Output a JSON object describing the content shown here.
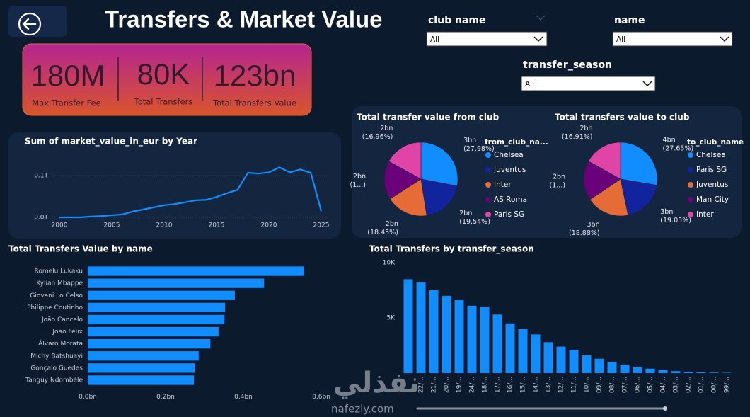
{
  "header": {
    "title": "Transfers & Market Value"
  },
  "kpis": [
    {
      "value": "180M",
      "label": "Max Transfer Fee"
    },
    {
      "value": "80K",
      "label": "Total Transfers"
    },
    {
      "value": "123bn",
      "label": "Total Transfers Value"
    }
  ],
  "slicers": [
    {
      "label": "club name",
      "selection": "All"
    },
    {
      "label": "name",
      "selection": "All"
    },
    {
      "label": "transfer_season",
      "selection": "All"
    }
  ],
  "watermark": {
    "arabic": "نفذلي",
    "site": "nafezly.com"
  },
  "chart_data": [
    {
      "type": "line",
      "title": "Sum of market_value_in_eur by Year",
      "x": [
        2000,
        2001,
        2002,
        2003,
        2004,
        2005,
        2006,
        2007,
        2008,
        2009,
        2010,
        2011,
        2012,
        2013,
        2014,
        2015,
        2016,
        2017,
        2018,
        2019,
        2020,
        2021,
        2022,
        2023,
        2024,
        2025
      ],
      "values": [
        0.0,
        0.0,
        0.0,
        0.002,
        0.003,
        0.005,
        0.007,
        0.014,
        0.019,
        0.024,
        0.029,
        0.032,
        0.036,
        0.041,
        0.042,
        0.049,
        0.058,
        0.066,
        0.107,
        0.105,
        0.108,
        0.12,
        0.108,
        0.115,
        0.107,
        0.015
      ],
      "color": "#118dff",
      "xlim": [
        2000,
        2025
      ],
      "xticks": [
        2000,
        2005,
        2010,
        2015,
        2020,
        2025
      ],
      "ylim": [
        0,
        0.14
      ],
      "yticks": [
        {
          "value": 0,
          "label": "0.0T"
        },
        {
          "value": 0.1,
          "label": "0.1T"
        }
      ],
      "grid": true
    },
    {
      "type": "pie",
      "title": "Total transfer value from club",
      "legend_title": "from_club_na...",
      "categories": [
        "Chelsea",
        "Juventus",
        "Inter",
        "AS Roma",
        "Paris SG"
      ],
      "values": [
        2.994,
        2.091,
        1.974,
        1.826,
        1.815
      ],
      "value_labels": [
        "3bn",
        "2bn",
        "2bn",
        "2bn",
        "2bn"
      ],
      "percent_labels": [
        "(27.98%)",
        "(19.54%)",
        "(18.45%)",
        "(1...)",
        "(16.96%)"
      ],
      "colors": [
        "#118dff",
        "#12239e",
        "#e66c37",
        "#6b007b",
        "#e044a7"
      ]
    },
    {
      "type": "pie",
      "title": "Total transfers value to club",
      "legend_title": "to_club_name",
      "categories": [
        "Chelsea",
        "Paris SG",
        "Juventus",
        "Man City",
        "Inter"
      ],
      "values": [
        3.788,
        2.61,
        2.587,
        2.399,
        2.316
      ],
      "value_labels": [
        "4bn",
        "3bn",
        "3bn",
        "2bn",
        "2bn"
      ],
      "percent_labels": [
        "(27.65%)",
        "(19.05%)",
        "(18.88%)",
        "(1...)",
        "(16.91%)"
      ],
      "colors": [
        "#118dff",
        "#12239e",
        "#e66c37",
        "#6b007b",
        "#e044a7"
      ]
    },
    {
      "type": "bar",
      "orientation": "horizontal",
      "title": "Total Transfers Value by name",
      "categories": [
        "Romelu Lukaku",
        "Kylian Mbappé",
        "Giovani Lo Celso",
        "Philippe Coutinho",
        "João Cancelo",
        "João Félix",
        "Álvaro Morata",
        "Michy Batshuayi",
        "Gonçalo Guedes",
        "Tanguy Ndombélé"
      ],
      "values": [
        0.555,
        0.453,
        0.378,
        0.353,
        0.351,
        0.336,
        0.315,
        0.285,
        0.275,
        0.273
      ],
      "color": "#118dff",
      "xlim": [
        0,
        0.6
      ],
      "xticks": [
        {
          "value": 0,
          "label": "0.0bn"
        },
        {
          "value": 0.2,
          "label": "0.2bn"
        },
        {
          "value": 0.4,
          "label": "0.4bn"
        },
        {
          "value": 0.6,
          "label": "0.6bn"
        }
      ]
    },
    {
      "type": "bar",
      "orientation": "vertical",
      "title": "Total Transfers by transfer_season",
      "categories": [
        null,
        "22/...",
        "21/...",
        "20/...",
        "19/...",
        "24/...",
        "18/...",
        "17/...",
        "16/...",
        "15/...",
        "14/...",
        "13/...",
        "12/...",
        "11/...",
        "10/...",
        "09/...",
        "08/...",
        "07/...",
        "06/...",
        "05/...",
        "04/...",
        "03/...",
        "02/...",
        "01/...",
        "00/...",
        "99/..."
      ],
      "values": [
        8500,
        8200,
        7500,
        7000,
        6600,
        6100,
        6000,
        5300,
        4500,
        4000,
        3500,
        2800,
        2400,
        2100,
        1600,
        1300,
        1000,
        750,
        550,
        400,
        280,
        180,
        120,
        80,
        50,
        30
      ],
      "color": "#118dff",
      "ylim": [
        0,
        10000
      ],
      "yticks": [
        {
          "value": 5000,
          "label": "5K"
        },
        {
          "value": 10000,
          "label": "10K"
        }
      ]
    }
  ]
}
